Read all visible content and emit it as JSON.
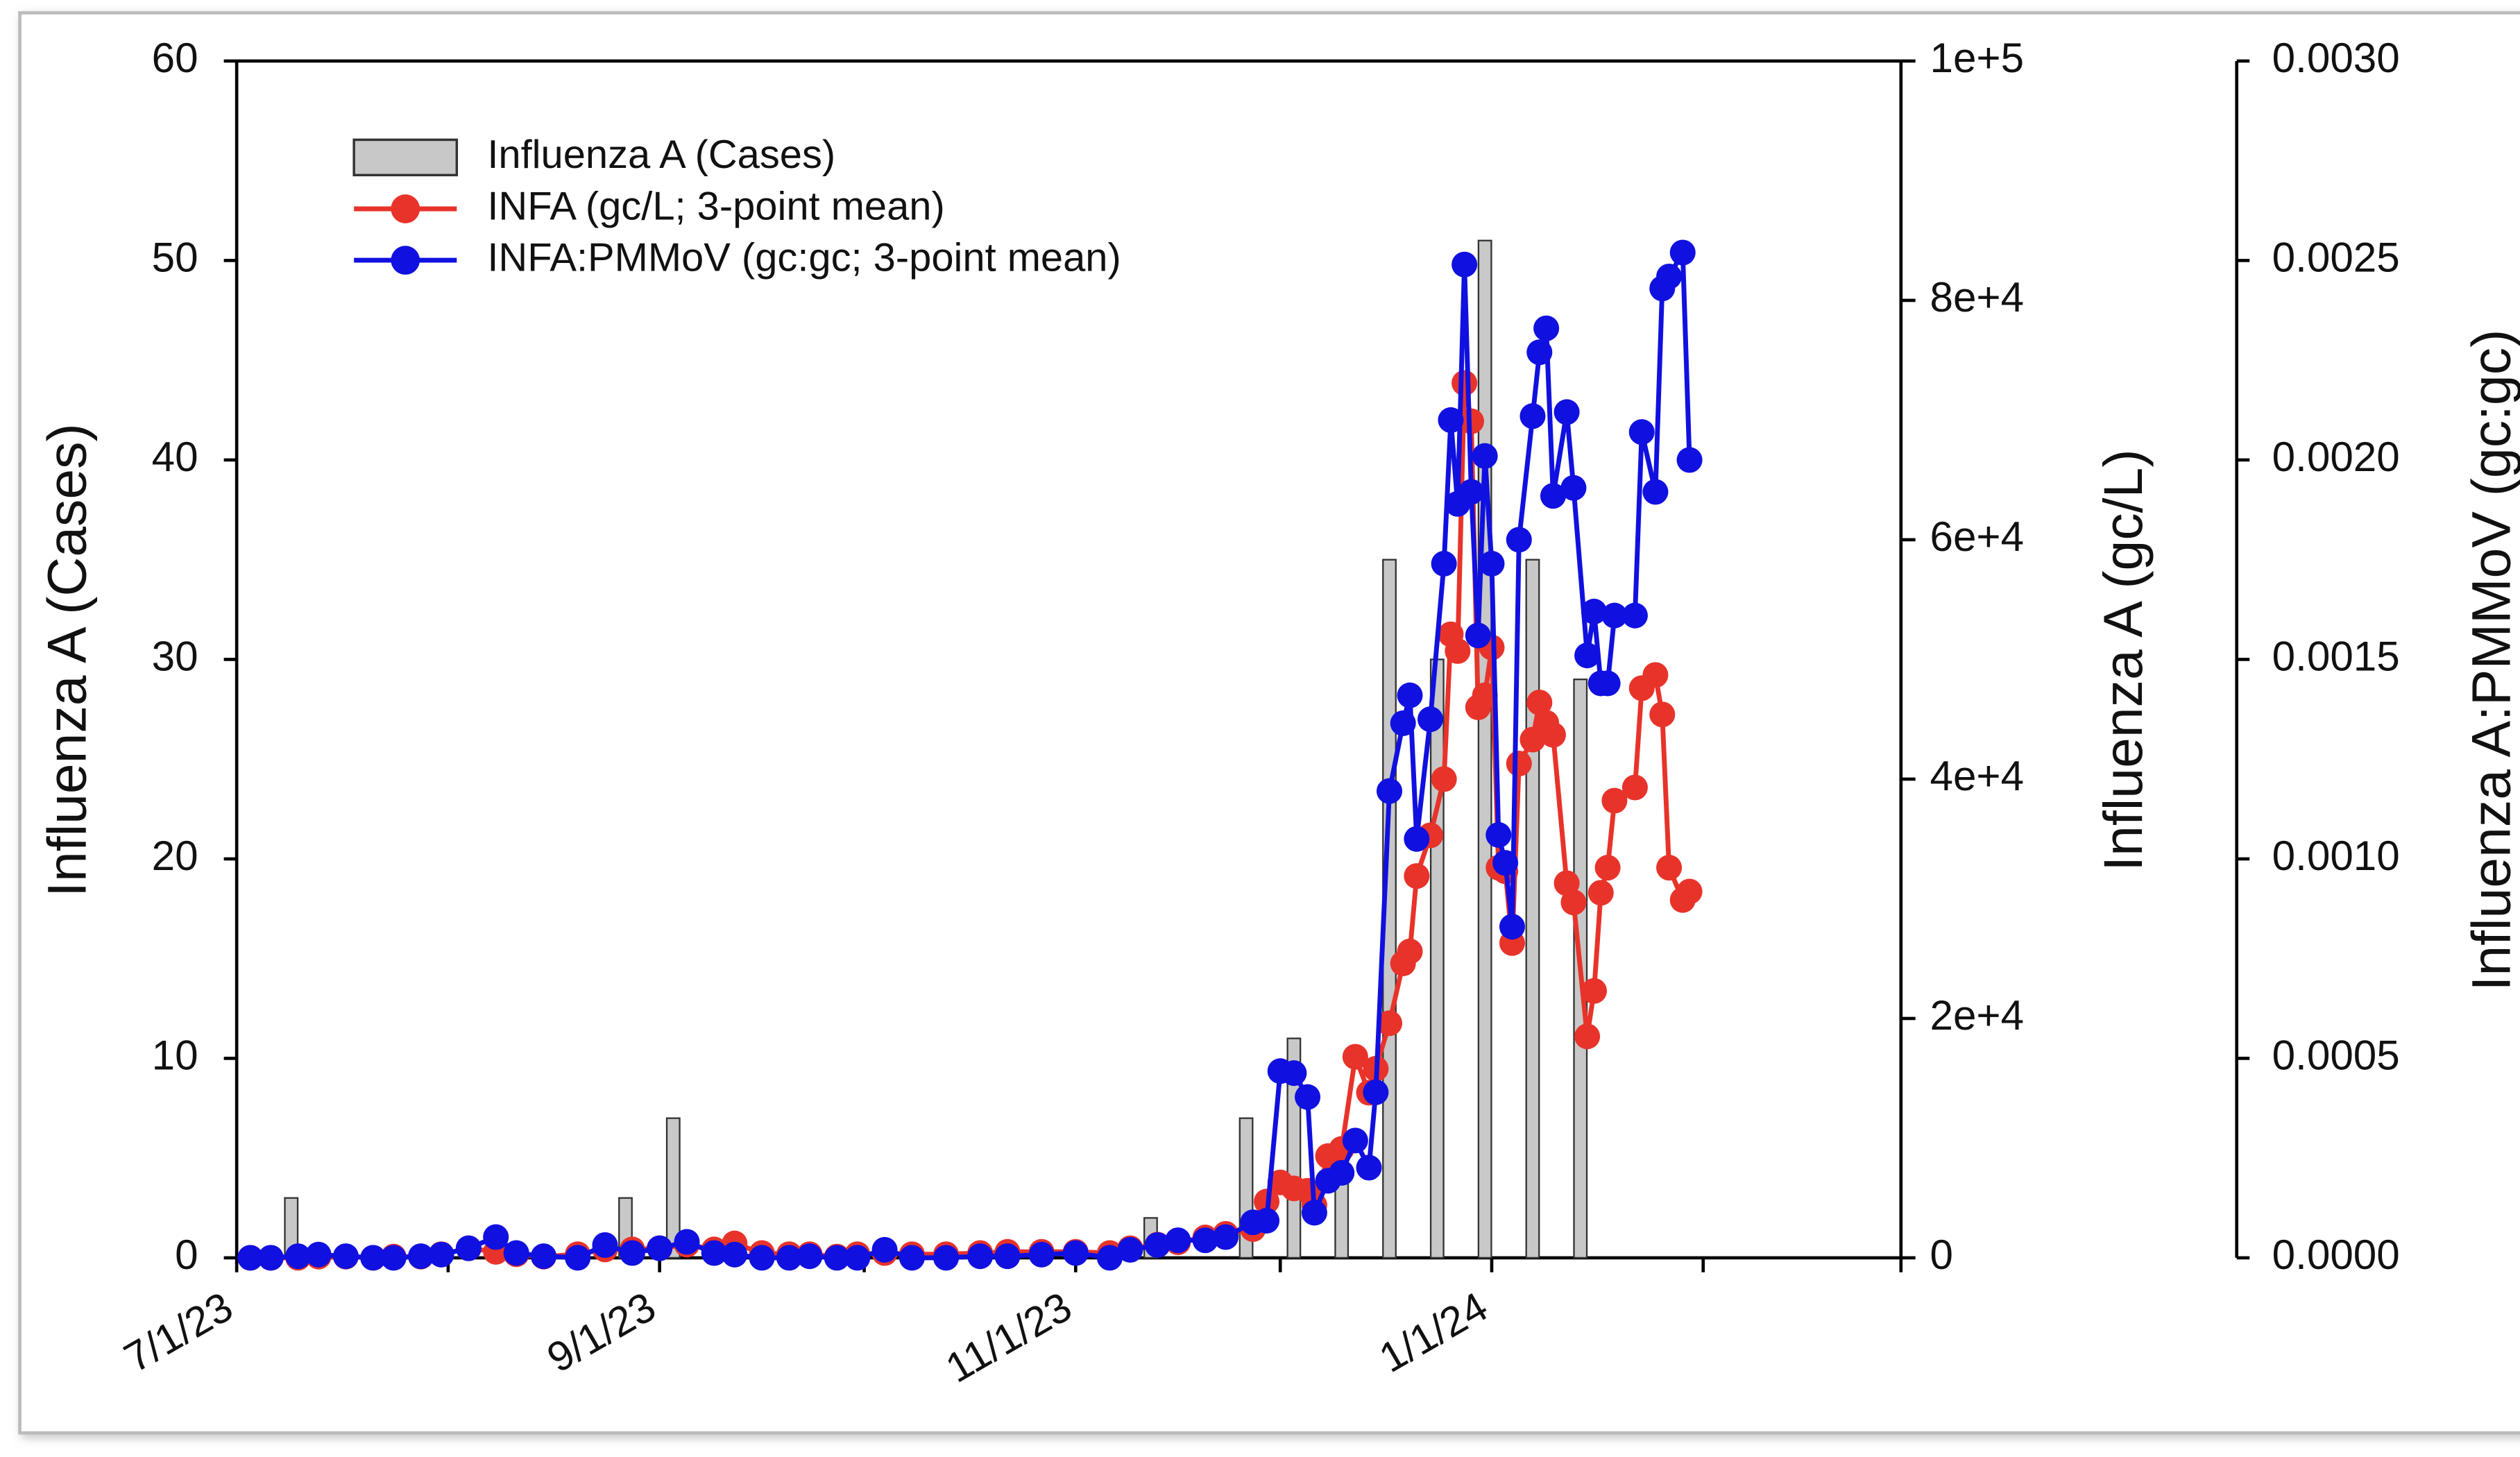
{
  "chart_data": {
    "type": "combo",
    "x": [
      "2023-07-03",
      "2023-07-06",
      "2023-07-10",
      "2023-07-13",
      "2023-07-17",
      "2023-07-21",
      "2023-07-24",
      "2023-07-28",
      "2023-07-31",
      "2023-08-04",
      "2023-08-08",
      "2023-08-11",
      "2023-08-15",
      "2023-08-20",
      "2023-08-24",
      "2023-08-28",
      "2023-09-01",
      "2023-09-05",
      "2023-09-09",
      "2023-09-12",
      "2023-09-16",
      "2023-09-20",
      "2023-09-23",
      "2023-09-27",
      "2023-09-30",
      "2023-10-04",
      "2023-10-08",
      "2023-10-13",
      "2023-10-18",
      "2023-10-22",
      "2023-10-27",
      "2023-11-01",
      "2023-11-06",
      "2023-11-09",
      "2023-11-13",
      "2023-11-16",
      "2023-11-20",
      "2023-11-23",
      "2023-11-27",
      "2023-11-29",
      "2023-12-01",
      "2023-12-03",
      "2023-12-05",
      "2023-12-06",
      "2023-12-08",
      "2023-12-10",
      "2023-12-12",
      "2023-12-14",
      "2023-12-15",
      "2023-12-17",
      "2023-12-19",
      "2023-12-20",
      "2023-12-21",
      "2023-12-23",
      "2023-12-25",
      "2023-12-26",
      "2023-12-27",
      "2023-12-28",
      "2023-12-29",
      "2023-12-30",
      "2023-12-31",
      "2024-01-01",
      "2024-01-02",
      "2024-01-03",
      "2024-01-04",
      "2024-01-05",
      "2024-01-07",
      "2024-01-08",
      "2024-01-09",
      "2024-01-10",
      "2024-01-12",
      "2024-01-13",
      "2024-01-15",
      "2024-01-16",
      "2024-01-17",
      "2024-01-18",
      "2024-01-19",
      "2024-01-22",
      "2024-01-23",
      "2024-01-25",
      "2024-01-26",
      "2024-01-27",
      "2024-01-29",
      "2024-01-30"
    ],
    "series": [
      {
        "name": "Influenza A (Cases)",
        "type": "bar",
        "color": "#c8c8c8",
        "x": [
          "2023-07-09",
          "2023-08-27",
          "2023-09-03",
          "2023-11-12",
          "2023-11-26",
          "2023-12-03",
          "2023-12-10",
          "2023-12-17",
          "2023-12-24",
          "2023-12-31",
          "2024-01-07",
          "2024-01-14"
        ],
        "values": [
          3,
          3,
          7,
          2,
          7,
          11,
          5,
          35,
          30,
          51,
          35,
          29
        ]
      },
      {
        "name": "INFA (gc/L; 3-point mean)",
        "type": "line",
        "axis": "y2",
        "color": "#e8332a",
        "values": [
          0,
          0,
          0,
          100,
          100,
          0,
          100,
          100,
          300,
          800,
          500,
          300,
          100,
          300,
          700,
          700,
          800,
          1100,
          700,
          1200,
          400,
          300,
          300,
          100,
          300,
          400,
          300,
          300,
          400,
          500,
          500,
          500,
          400,
          800,
          1100,
          1300,
          1700,
          2000,
          2400,
          4700,
          6300,
          5800,
          5600,
          4400,
          8500,
          9100,
          16800,
          13800,
          15800,
          19600,
          24600,
          25600,
          31900,
          35300,
          40000,
          52100,
          50700,
          73100,
          69900,
          46000,
          47000,
          51000,
          32600,
          32300,
          26300,
          41300,
          43300,
          46400,
          44700,
          43700,
          31300,
          29700,
          18500,
          22300,
          30500,
          32600,
          38200,
          39300,
          47600,
          48700,
          45400,
          32600,
          29900,
          30600
        ]
      },
      {
        "name": "INFA:PMMoV (gc:gc; 3-point mean)",
        "type": "line",
        "axis": "y3",
        "color": "#1010e0",
        "values": [
          0,
          0,
          4e-06,
          8e-06,
          4e-06,
          0,
          0,
          4e-06,
          8e-06,
          2.4e-05,
          5.2e-05,
          1.2e-05,
          4e-06,
          0,
          3.2e-05,
          1.2e-05,
          2.4e-05,
          4e-05,
          1.2e-05,
          8e-06,
          0,
          0,
          4e-06,
          0,
          0,
          2e-05,
          0,
          0,
          4e-06,
          4e-06,
          8e-06,
          1.2e-05,
          0,
          2e-05,
          3.2e-05,
          4.4e-05,
          4.4e-05,
          5.2e-05,
          8.9e-05,
          9.3e-05,
          0.000468,
          0.000463,
          0.000403,
          0.000113,
          0.000193,
          0.000213,
          0.000294,
          0.000226,
          0.000415,
          0.00117,
          0.00134,
          0.00141,
          0.00105,
          0.00135,
          0.00174,
          0.0021,
          0.00189,
          0.00249,
          0.00192,
          0.00156,
          0.00201,
          0.00174,
          0.00106,
          0.00099,
          0.00083,
          0.0018,
          0.00211,
          0.00227,
          0.00233,
          0.00191,
          0.00212,
          0.00193,
          0.00151,
          0.00162,
          0.00144,
          0.00144,
          0.00161,
          0.00161,
          0.00207,
          0.00192,
          0.00243,
          0.00246,
          0.00252,
          0.002
        ]
      }
    ],
    "xlim": [
      "2023-07-01",
      "2024-03-01"
    ],
    "xticks": [
      {
        "value": "2023-07-01",
        "label": "7/1/23"
      },
      {
        "value": "2023-09-01",
        "label": "9/1/23"
      },
      {
        "value": "2023-11-01",
        "label": "11/1/23"
      },
      {
        "value": "2024-01-01",
        "label": "1/1/24"
      }
    ],
    "xminorticks": [
      "2023-08-01",
      "2023-10-01",
      "2023-12-01",
      "2024-02-01",
      "2024-03-01"
    ],
    "ylabel": "Influenza A (Cases)",
    "ylim": [
      0,
      60
    ],
    "yticks": [
      0,
      10,
      20,
      30,
      40,
      50,
      60
    ],
    "y2label": "Influenza A (gc/L)",
    "y2lim": [
      0,
      100000
    ],
    "y2ticks": [
      0,
      {
        "value": 20000,
        "label": "2e+4"
      },
      {
        "value": 40000,
        "label": "4e+4"
      },
      {
        "value": 60000,
        "label": "6e+4"
      },
      {
        "value": 80000,
        "label": "8e+4"
      },
      {
        "value": 100000,
        "label": "1e+5"
      }
    ],
    "y3label": "Influenza A:PMMoV (gc:gc)",
    "y3lim": [
      0,
      0.003
    ],
    "y3ticks": [
      {
        "value": 0,
        "label": "0.0000"
      },
      {
        "value": 0.0005,
        "label": "0.0005"
      },
      {
        "value": 0.001,
        "label": "0.0010"
      },
      {
        "value": 0.0015,
        "label": "0.0015"
      },
      {
        "value": 0.002,
        "label": "0.0020"
      },
      {
        "value": 0.0025,
        "label": "0.0025"
      },
      {
        "value": 0.003,
        "label": "0.0030"
      }
    ],
    "legend": "upper left"
  }
}
